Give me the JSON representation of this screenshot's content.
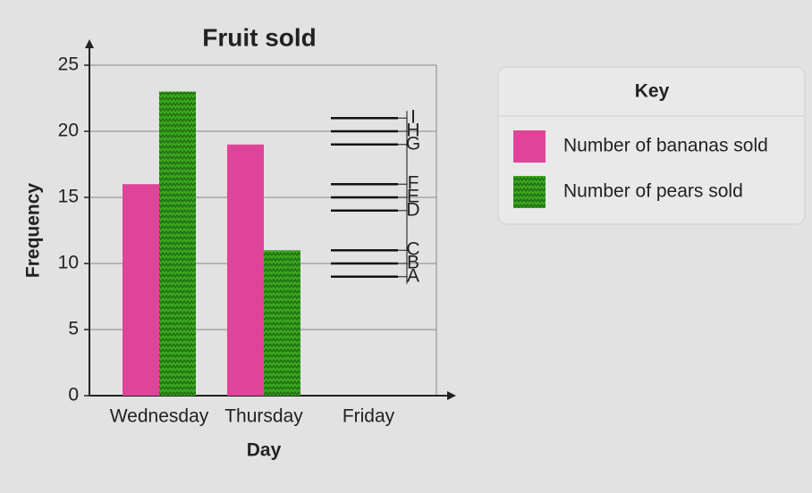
{
  "chart_data": {
    "type": "bar",
    "title": "Fruit sold",
    "x_label": "Day",
    "y_label": "Frequency",
    "categories": [
      "Wednesday",
      "Thursday",
      "Friday"
    ],
    "series": [
      {
        "name": "Number of bananas sold",
        "color": "#e0449a",
        "values": [
          16,
          19,
          null
        ]
      },
      {
        "name": "Number of pears sold",
        "color": "#3ba51f",
        "values": [
          23,
          11,
          null
        ]
      }
    ],
    "ylim": [
      0,
      25
    ],
    "yticks": [
      0,
      5,
      10,
      15,
      20,
      25
    ],
    "grid": true,
    "legend_title": "Key",
    "legend_position": "right",
    "options": [
      {
        "label": "A",
        "value": 9
      },
      {
        "label": "B",
        "value": 10
      },
      {
        "label": "C",
        "value": 11
      },
      {
        "label": "D",
        "value": 14
      },
      {
        "label": "E",
        "value": 15
      },
      {
        "label": "F",
        "value": 16
      },
      {
        "label": "G",
        "value": 19
      },
      {
        "label": "H",
        "value": 20
      },
      {
        "label": "I",
        "value": 21
      }
    ]
  }
}
